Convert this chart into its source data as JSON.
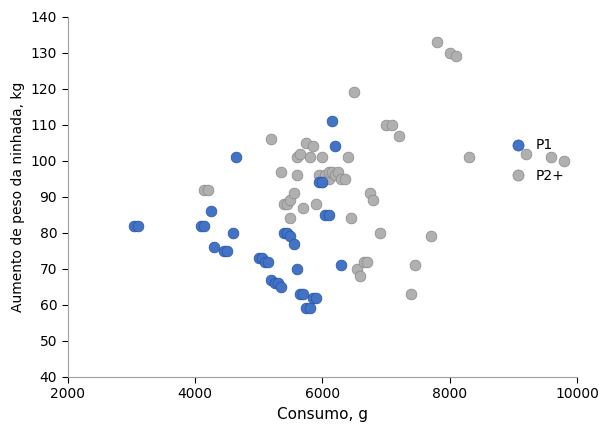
{
  "p1_x": [
    3050,
    3100,
    4100,
    4150,
    4250,
    4300,
    4450,
    4500,
    4600,
    4650,
    5000,
    5050,
    5100,
    5150,
    5200,
    5250,
    5300,
    5350,
    5400,
    5450,
    5500,
    5550,
    5600,
    5650,
    5700,
    5750,
    5800,
    5850,
    5900,
    5950,
    6000,
    6050,
    6100,
    6150,
    6200,
    6300
  ],
  "p1_y": [
    82,
    82,
    82,
    82,
    86,
    76,
    75,
    75,
    80,
    101,
    73,
    73,
    72,
    72,
    67,
    66,
    66,
    65,
    80,
    80,
    79,
    77,
    70,
    63,
    63,
    59,
    59,
    62,
    62,
    94,
    94,
    85,
    85,
    111,
    104,
    71
  ],
  "p2_x": [
    4150,
    4200,
    5200,
    5350,
    5400,
    5450,
    5500,
    5500,
    5550,
    5600,
    5600,
    5650,
    5700,
    5750,
    5800,
    5850,
    5900,
    5950,
    6000,
    6000,
    6050,
    6100,
    6100,
    6150,
    6200,
    6250,
    6300,
    6350,
    6400,
    6450,
    6500,
    6550,
    6600,
    6650,
    6700,
    6750,
    6800,
    6900,
    7000,
    7100,
    7200,
    7400,
    7450,
    7700,
    7800,
    8000,
    8100,
    8300,
    9200,
    9600,
    9800
  ],
  "p2_y": [
    92,
    92,
    106,
    97,
    88,
    88,
    89,
    84,
    91,
    101,
    96,
    102,
    87,
    105,
    101,
    104,
    88,
    96,
    101,
    94,
    96,
    95,
    97,
    97,
    96,
    97,
    95,
    95,
    101,
    84,
    119,
    70,
    68,
    72,
    72,
    91,
    89,
    80,
    110,
    110,
    107,
    63,
    71,
    79,
    133,
    130,
    129,
    101,
    102,
    101,
    100
  ],
  "p1_color": "#4472C4",
  "p2_color": "#B0B0B0",
  "p1_edge": "#2255AA",
  "p2_edge": "#888888",
  "xlabel": "Consumo, g",
  "ylabel": "Aumento de peso da ninhada, kg",
  "xlim": [
    2000,
    10000
  ],
  "ylim": [
    40,
    140
  ],
  "xticks": [
    2000,
    4000,
    6000,
    8000,
    10000
  ],
  "yticks": [
    40,
    50,
    60,
    70,
    80,
    90,
    100,
    110,
    120,
    130,
    140
  ],
  "legend_p1": "P1",
  "legend_p2": "P2+",
  "marker_size": 60,
  "linewidth": 0.5,
  "spine_color": "#A0A0A0"
}
